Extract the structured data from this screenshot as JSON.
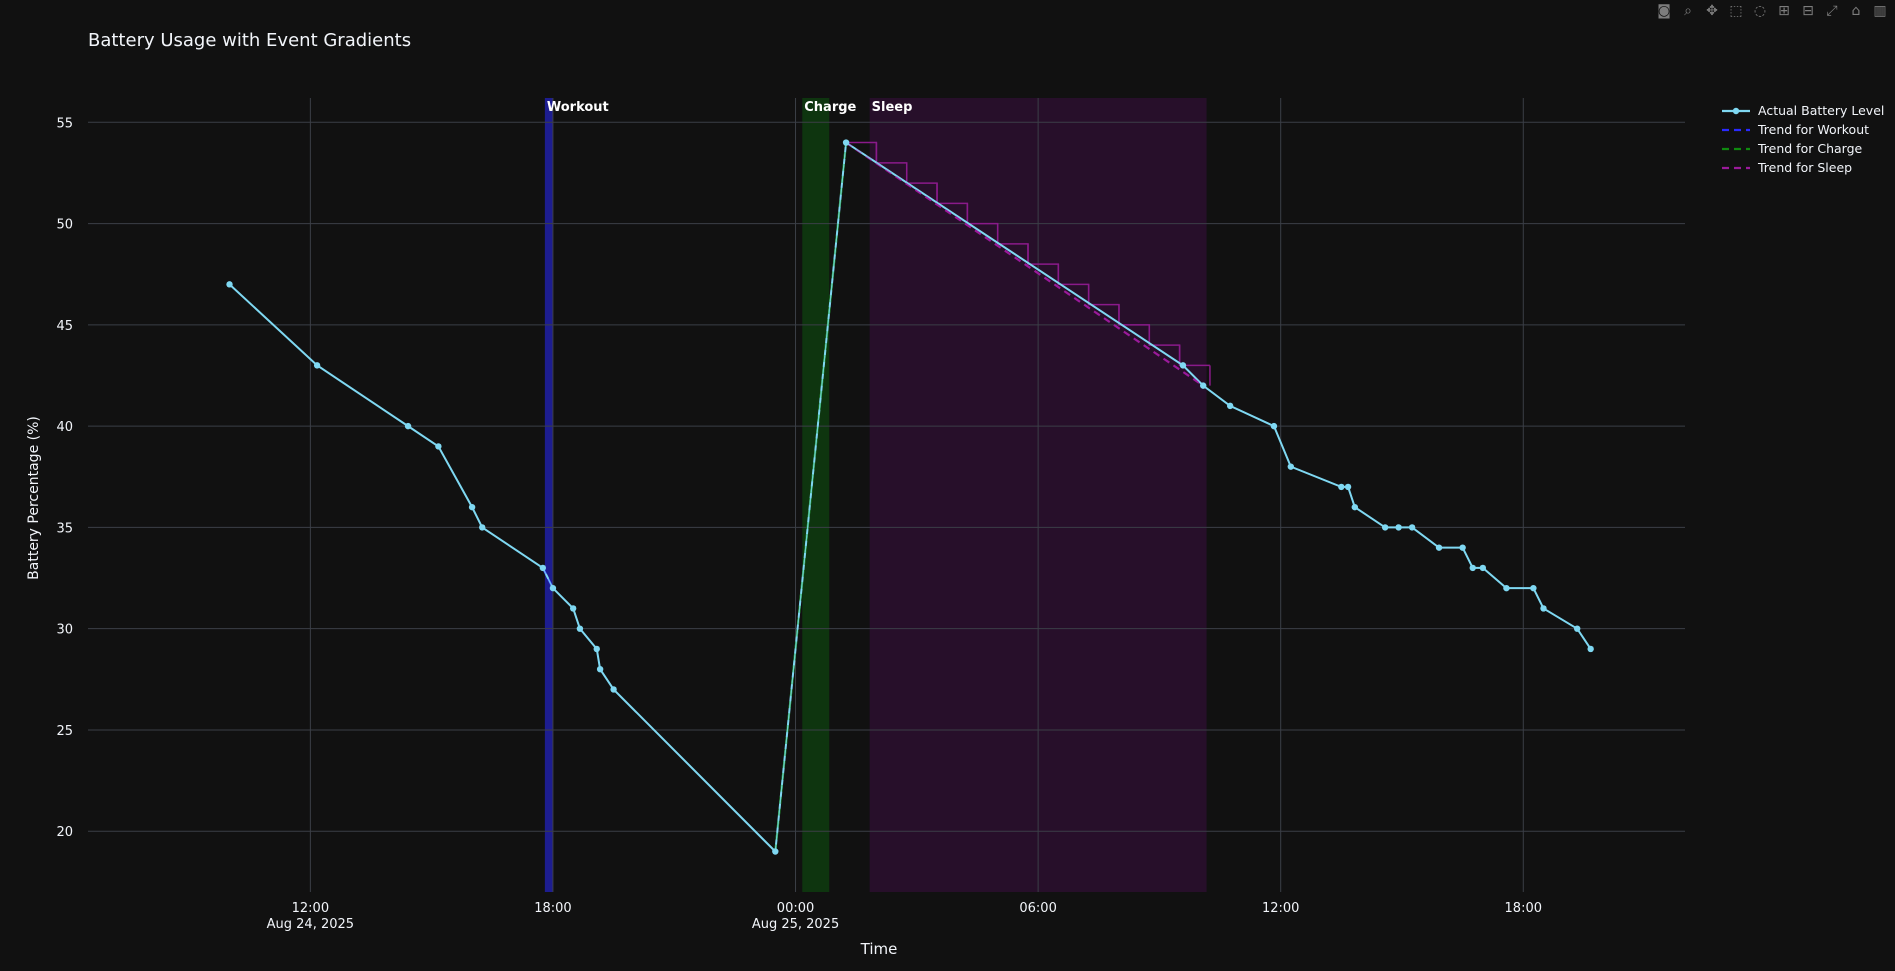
{
  "title": "Battery Usage with Event Gradients",
  "modebar": {
    "icons": [
      "camera-icon",
      "zoom-icon",
      "pan-icon",
      "box-select-icon",
      "lasso-icon",
      "zoom-in-icon",
      "zoom-out-icon",
      "autoscale-icon",
      "reset-axes-icon",
      "plotly-logo-icon"
    ]
  },
  "chart_data": {
    "type": "line",
    "xlabel": "Time",
    "ylabel": "Battery Percentage (%)",
    "xrange": [
      "2025-08-24 06:30",
      "2025-08-25 22:00"
    ],
    "ylim": [
      17,
      56.2
    ],
    "yticks": [
      20,
      25,
      30,
      35,
      40,
      45,
      50,
      55
    ],
    "xticks": [
      {
        "t": "2025-08-24 12:00",
        "label": "12:00",
        "sub": "Aug 24, 2025"
      },
      {
        "t": "2025-08-24 18:00",
        "label": "18:00",
        "sub": ""
      },
      {
        "t": "2025-08-25 00:00",
        "label": "00:00",
        "sub": "Aug 25, 2025"
      },
      {
        "t": "2025-08-25 06:00",
        "label": "06:00",
        "sub": ""
      },
      {
        "t": "2025-08-25 12:00",
        "label": "12:00",
        "sub": ""
      },
      {
        "t": "2025-08-25 18:00",
        "label": "18:00",
        "sub": ""
      }
    ],
    "grid": true,
    "legend_position": "top-right",
    "events": [
      {
        "name": "Workout",
        "start": "2025-08-24 17:48",
        "end": "2025-08-24 18:00",
        "color": "#1f1f9e"
      },
      {
        "name": "Charge",
        "start": "2025-08-25 00:10",
        "end": "2025-08-25 00:50",
        "color": "#0e3a10"
      },
      {
        "name": "Sleep",
        "start": "2025-08-25 01:50",
        "end": "2025-08-25 10:10",
        "color": "#2a0f2d"
      }
    ],
    "series": [
      {
        "name": "Actual Battery Level",
        "color": "#7fd8f2",
        "x": [
          "2025-08-24 10:00",
          "2025-08-24 12:10",
          "2025-08-24 14:25",
          "2025-08-24 15:10",
          "2025-08-24 16:00",
          "2025-08-24 16:15",
          "2025-08-24 17:45",
          "2025-08-24 18:00",
          "2025-08-24 18:30",
          "2025-08-24 18:40",
          "2025-08-24 19:05",
          "2025-08-24 19:10",
          "2025-08-24 19:30",
          "2025-08-24 23:30",
          "2025-08-25 01:15",
          "2025-08-25 09:35",
          "2025-08-25 10:05",
          "2025-08-25 10:45",
          "2025-08-25 11:50",
          "2025-08-25 12:15",
          "2025-08-25 13:30",
          "2025-08-25 13:40",
          "2025-08-25 13:50",
          "2025-08-25 14:35",
          "2025-08-25 14:55",
          "2025-08-25 15:15",
          "2025-08-25 15:55",
          "2025-08-25 16:30",
          "2025-08-25 16:45",
          "2025-08-25 17:00",
          "2025-08-25 17:35",
          "2025-08-25 18:15",
          "2025-08-25 18:30",
          "2025-08-25 19:20",
          "2025-08-25 19:40"
        ],
        "y": [
          47,
          43,
          40,
          39,
          36,
          35,
          33,
          32,
          31,
          30,
          29,
          28,
          27,
          19,
          54,
          43,
          42,
          41,
          40,
          38,
          37,
          37,
          36,
          35,
          35,
          35,
          34,
          34,
          33,
          33,
          32,
          32,
          31,
          30,
          29
        ]
      },
      {
        "name": "Trend for Workout",
        "color": "#2a2aff",
        "x": [
          "2025-08-24 17:45",
          "2025-08-24 18:00"
        ],
        "y": [
          33,
          32
        ]
      },
      {
        "name": "Trend for Charge",
        "color": "#0f8a0f",
        "x": [
          "2025-08-24 23:30",
          "2025-08-25 01:15"
        ],
        "y": [
          19,
          54
        ]
      },
      {
        "name": "Trend for Sleep",
        "color": "#9a1a9a",
        "x": [
          "2025-08-25 01:15",
          "2025-08-25 10:05"
        ],
        "y": [
          54,
          42
        ]
      }
    ],
    "sleep_steps": {
      "color": "#8a1a8a",
      "start": "2025-08-25 01:15",
      "step_minutes": 45,
      "levels": [
        54,
        53,
        52,
        51,
        50,
        49,
        48,
        47,
        46,
        45,
        44,
        43
      ]
    }
  }
}
